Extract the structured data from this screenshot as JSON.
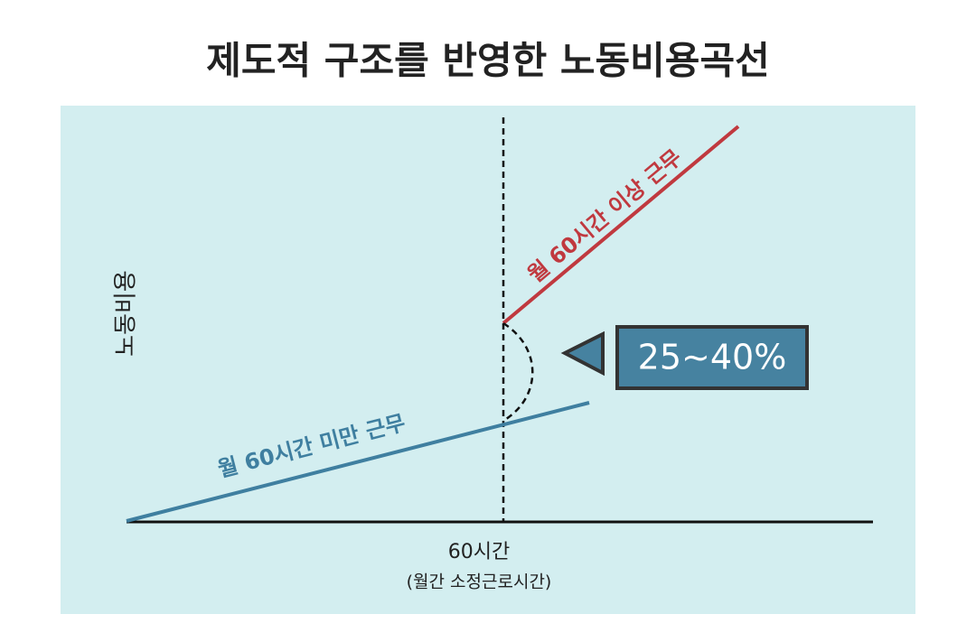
{
  "title": "제도적 구조를 반영한 노동비용곡선",
  "y_axis_label": "노동비용",
  "upper_line_label": "월 60시간 이상 근무",
  "lower_line_label": "월 60시간 미만 근무",
  "x_marker_label": "60시간",
  "x_marker_sublabel": "(월간 소정근로시간)",
  "callout": "25~40%"
}
